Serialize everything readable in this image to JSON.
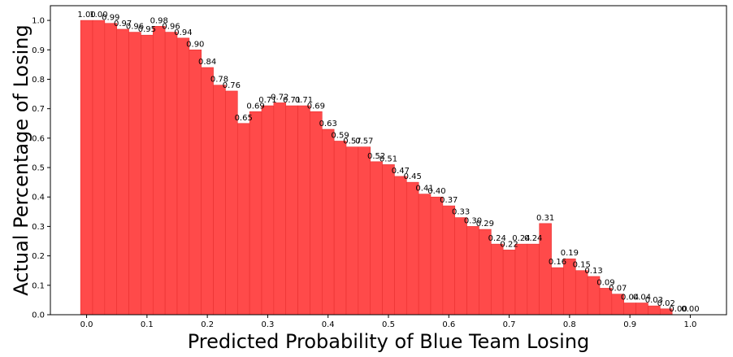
{
  "chart_data": {
    "type": "bar",
    "title": "",
    "xlabel": "Predicted Probability of Blue Team Losing",
    "ylabel": "Actual Percentage of Losing",
    "bar_width": 0.02,
    "x": [
      0.0,
      0.02,
      0.04,
      0.06,
      0.08,
      0.1,
      0.12,
      0.14,
      0.16,
      0.18,
      0.2,
      0.22,
      0.24,
      0.26,
      0.28,
      0.3,
      0.32,
      0.34,
      0.36,
      0.38,
      0.4,
      0.42,
      0.44,
      0.46,
      0.48,
      0.5,
      0.52,
      0.54,
      0.56,
      0.58,
      0.6,
      0.62,
      0.64,
      0.66,
      0.68,
      0.7,
      0.72,
      0.74,
      0.76,
      0.78,
      0.8,
      0.82,
      0.84,
      0.86,
      0.88,
      0.9,
      0.92,
      0.94,
      0.96,
      0.98,
      1.0
    ],
    "values": [
      1.0,
      1.0,
      0.99,
      0.97,
      0.96,
      0.95,
      0.98,
      0.96,
      0.94,
      0.9,
      0.84,
      0.78,
      0.76,
      0.65,
      0.69,
      0.71,
      0.72,
      0.71,
      0.71,
      0.69,
      0.63,
      0.59,
      0.57,
      0.57,
      0.52,
      0.51,
      0.47,
      0.45,
      0.41,
      0.4,
      0.37,
      0.33,
      0.3,
      0.29,
      0.24,
      0.22,
      0.24,
      0.24,
      0.31,
      0.16,
      0.19,
      0.15,
      0.13,
      0.09,
      0.07,
      0.04,
      0.04,
      0.03,
      0.02,
      0.0,
      0.0
    ],
    "labels": [
      "1.00",
      "1.00",
      "0.99",
      "0.97",
      "0.96",
      "0.95",
      "0.98",
      "0.96",
      "0.94",
      "0.90",
      "0.84",
      "0.78",
      "0.76",
      "0.65",
      "0.69",
      "0.71",
      "0.72",
      "0.71",
      "0.71",
      "0.69",
      "0.63",
      "0.59",
      "0.57",
      "0.57",
      "0.52",
      "0.51",
      "0.47",
      "0.45",
      "0.41",
      "0.40",
      "0.37",
      "0.33",
      "0.30",
      "0.29",
      "0.24",
      "0.22",
      "0.24",
      "0.24",
      "0.31",
      "0.16",
      "0.19",
      "0.15",
      "0.13",
      "0.09",
      "0.07",
      "0.04",
      "0.04",
      "0.03",
      "0.02",
      "0.00",
      "0.00"
    ],
    "xlim": [
      -0.06,
      1.06
    ],
    "ylim": [
      0,
      1.05
    ],
    "x_ticks": [
      "0.0",
      "0.1",
      "0.2",
      "0.3",
      "0.4",
      "0.5",
      "0.6",
      "0.7",
      "0.8",
      "0.9",
      "1.0"
    ],
    "y_ticks": [
      "0.0",
      "0.1",
      "0.2",
      "0.3",
      "0.4",
      "0.5",
      "0.6",
      "0.7",
      "0.8",
      "0.9",
      "1.0"
    ],
    "grid": false,
    "bar_color": "#ff4a4a",
    "bar_edge_color": "#e83030"
  }
}
